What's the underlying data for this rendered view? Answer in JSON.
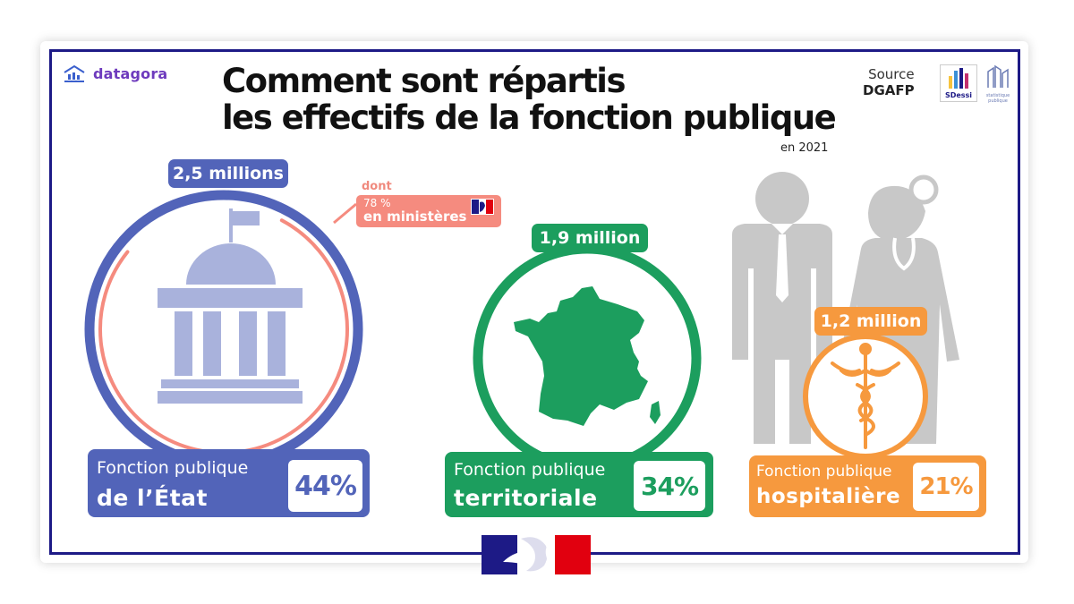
{
  "brand": {
    "name": "datagora"
  },
  "title": {
    "line1": "Comment sont répartis",
    "line2": "les effectifs de la fonction publique",
    "year": "en 2021"
  },
  "source": {
    "label": "Source",
    "org": "DGAFP",
    "logo_text": "SDessi",
    "logo2_text": "statistique publique"
  },
  "chart_data": {
    "type": "pie",
    "title": "Comment sont répartis les effectifs de la fonction publique",
    "subtitle": "en 2021",
    "categories": [
      "Fonction publique de l’État",
      "Fonction publique territoriale",
      "Fonction publique hospitalière"
    ],
    "values": [
      44,
      34,
      21
    ],
    "unit": "%",
    "headcounts": [
      "2,5 millions",
      "1,9 million",
      "1,2 million"
    ],
    "sub_share": {
      "category": "Fonction publique de l’État",
      "prefix": "dont",
      "value": 78,
      "label": "78 %",
      "description": "en ministères"
    }
  },
  "cards": [
    {
      "line1": "Fonction publique",
      "line2": "de l’État",
      "pct": "44%",
      "count": "2,5 millions",
      "color": "#5264b9"
    },
    {
      "line1": "Fonction publique",
      "line2": "territoriale",
      "pct": "34%",
      "count": "1,9 million",
      "color": "#1c9e5e"
    },
    {
      "line1": "Fonction publique",
      "line2": "hospitalière",
      "pct": "21%",
      "count": "1,2 million",
      "color": "#f6993e"
    }
  ],
  "colors": {
    "frame": "#1d1a86",
    "etat": "#5264b9",
    "etat_light": "#a9b2dc",
    "ministeres": "#f58b7f",
    "territoriale": "#1c9e5e",
    "hospitaliere": "#f6993e",
    "people": "#c8c8c8"
  },
  "icons": {
    "brand": "bar-chart-icon",
    "etat": "government-building-icon",
    "territoriale": "france-map-icon",
    "hospitaliere": "caduceus-icon",
    "people": "civil-servant-and-doctor-icon",
    "rf": "marianne-logo-icon"
  }
}
